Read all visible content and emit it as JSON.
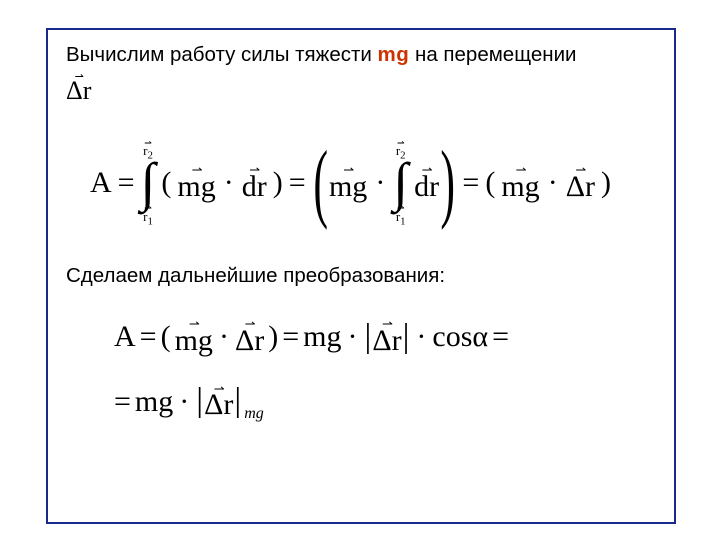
{
  "colors": {
    "frame_border": "#1a2a8a",
    "background": "#ffffff",
    "text": "#000000",
    "highlight": "#cc3300"
  },
  "intro": {
    "prefix": "Вычислим  работу силы тяжести ",
    "highlight": "mg",
    "suffix": " на перемещении"
  },
  "dr_symbol": "Δr",
  "eq1": {
    "lhs": "A",
    "equals": "=",
    "lower_bound": "r",
    "lower_sub": "1",
    "upper_bound": "r",
    "upper_sub": "2",
    "mg": "mg",
    "dr_diff": "dr",
    "delta_r": "Δr",
    "dot": "·",
    "lp": "(",
    "rp": ")"
  },
  "second_text": "Сделаем дальнейшие преобразования:",
  "eq2": {
    "lhs": "A",
    "equals": "=",
    "mg": "mg",
    "delta_r": "Δr",
    "cos_alpha": "cosα",
    "dot": "·",
    "sub": "mg",
    "lp": "(",
    "rp": ")"
  },
  "vec_arrow_glyph": "⇀"
}
